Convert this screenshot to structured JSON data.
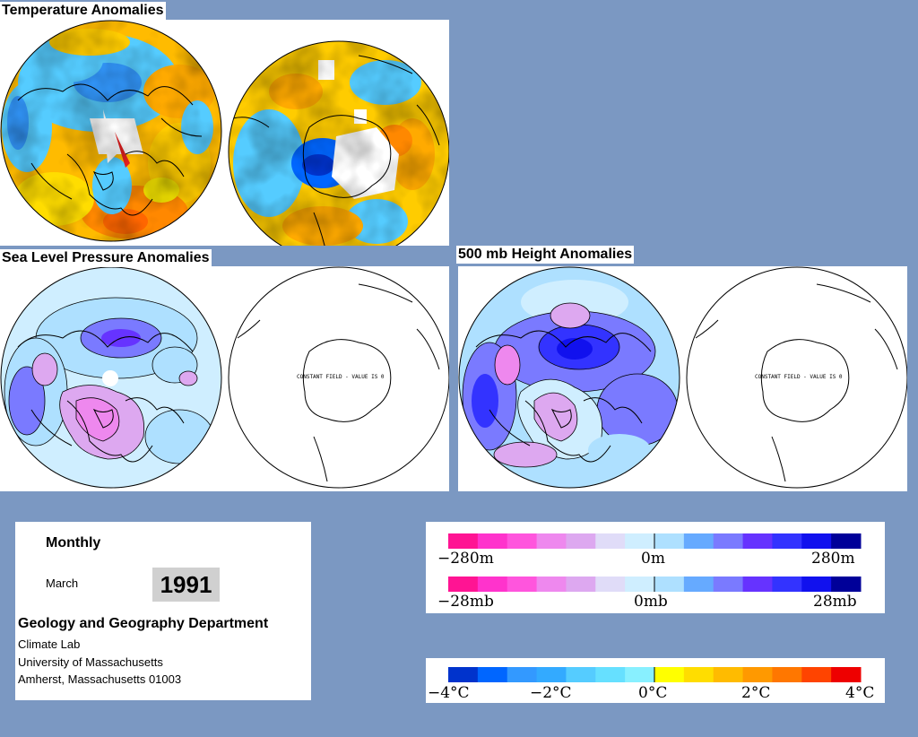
{
  "titles": {
    "temperature": "Temperature Anomalies",
    "slp": "Sea Level Pressure Anomalies",
    "height500": "500 mb Height Anomalies"
  },
  "constant_field_label": "CONSTANT FIELD - VALUE IS 0",
  "info": {
    "period": "Monthly",
    "month": "March",
    "year": "1991",
    "department": "Geology and Geography Department",
    "lab": "Climate Lab",
    "university": "University of Massachusetts",
    "address": "Amherst, Massachusetts 01003"
  },
  "scales": {
    "height": {
      "left": "−280m",
      "mid": "0m",
      "right": "280m"
    },
    "pressure": {
      "left": "−28mb",
      "mid": "0mb",
      "right": "28mb"
    },
    "temperature": {
      "t1": "−4°C",
      "t2": "−2°C",
      "t3": "0°C",
      "t4": "2°C",
      "t5": "4°C"
    }
  },
  "colors": {
    "background": "#7b98c2",
    "anomaly_scale": [
      "#ff1493",
      "#ff33cc",
      "#ff55dd",
      "#ee88ee",
      "#dda8f0",
      "#e0dcf8",
      "#cfeeff",
      "#aee0ff",
      "#66aaff",
      "#7a7aff",
      "#6633ff",
      "#3333ff",
      "#1111ee",
      "#000099"
    ],
    "temperature_scale": [
      "#0033cc",
      "#0066ff",
      "#3399ff",
      "#33aaff",
      "#55ccff",
      "#66e0ff",
      "#88f0ff",
      "#ffff00",
      "#ffdd00",
      "#ffbb00",
      "#ff9900",
      "#ff7700",
      "#ff4400",
      "#ee0000"
    ]
  }
}
